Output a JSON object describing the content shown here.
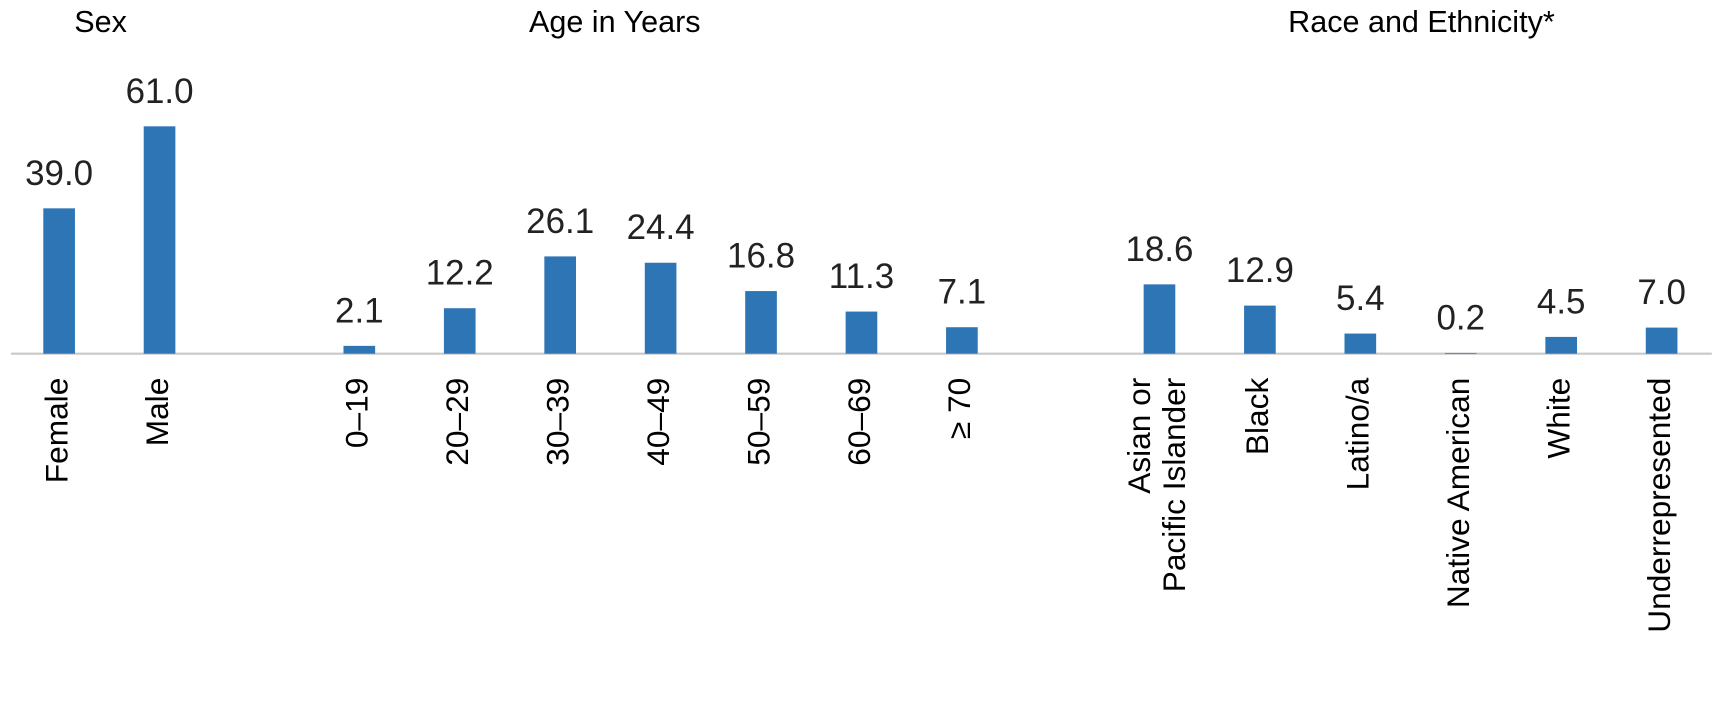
{
  "chart_data": [
    {
      "type": "bar",
      "title": "Sex",
      "categories": [
        "Female",
        "Male"
      ],
      "values": [
        39.0,
        61.0
      ],
      "value_labels": [
        "39.0",
        "61.0"
      ],
      "color": "#2e75b6",
      "ylim": [
        0,
        70
      ]
    },
    {
      "type": "bar",
      "title": "Age in Years",
      "categories": [
        "0–19",
        "20–29",
        "30–39",
        "40–49",
        "50–59",
        "60–69",
        "≥ 70"
      ],
      "values": [
        2.1,
        12.2,
        26.1,
        24.4,
        16.8,
        11.3,
        7.1
      ],
      "value_labels": [
        "2.1",
        "12.2",
        "26.1",
        "24.4",
        "16.8",
        "11.3",
        "7.1"
      ],
      "color": "#2e75b6",
      "ylim": [
        0,
        70
      ]
    },
    {
      "type": "bar",
      "title": "Race and Ethnicity*",
      "categories": [
        "Asian or\nPacific Islander",
        "Black",
        "Latino/a",
        "Native American",
        "White",
        "Underrepresented"
      ],
      "values": [
        18.6,
        12.9,
        5.4,
        0.2,
        4.5,
        7.0
      ],
      "value_labels": [
        "18.6",
        "12.9",
        "5.4",
        "0.2",
        "4.5",
        "7.0"
      ],
      "color": "#2e75b6",
      "ylim": [
        0,
        70
      ]
    }
  ]
}
